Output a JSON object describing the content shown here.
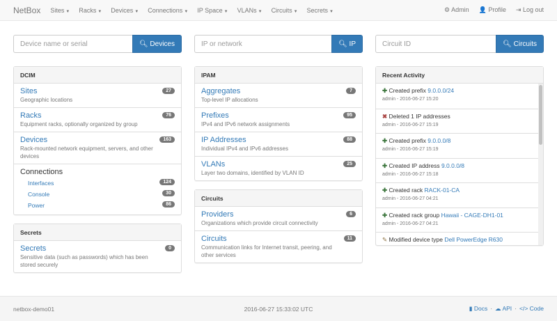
{
  "nav": {
    "brand": "NetBox",
    "menus": [
      "Sites",
      "Racks",
      "Devices",
      "Connections",
      "IP Space",
      "VLANs",
      "Circuits",
      "Secrets"
    ],
    "admin": "Admin",
    "profile": "Profile",
    "logout": "Log out"
  },
  "search": {
    "devices": {
      "placeholder": "Device name or serial",
      "button": "Devices"
    },
    "ip": {
      "placeholder": "IP or network",
      "button": "IP"
    },
    "circuits": {
      "placeholder": "Circuit ID",
      "button": "Circuits"
    }
  },
  "dcim": {
    "title": "DCIM",
    "items": [
      {
        "label": "Sites",
        "desc": "Geographic locations",
        "count": "27"
      },
      {
        "label": "Racks",
        "desc": "Equipment racks, optionally organized by group",
        "count": "76"
      },
      {
        "label": "Devices",
        "desc": "Rack-mounted network equipment, servers, and other devices",
        "count": "163"
      }
    ],
    "connections": {
      "label": "Connections",
      "items": [
        {
          "label": "Interfaces",
          "count": "124"
        },
        {
          "label": "Console",
          "count": "30"
        },
        {
          "label": "Power",
          "count": "86"
        }
      ]
    }
  },
  "secrets": {
    "title": "Secrets",
    "items": [
      {
        "label": "Secrets",
        "desc": "Sensitive data (such as passwords) which has been stored securely",
        "count": "0"
      }
    ]
  },
  "ipam": {
    "title": "IPAM",
    "items": [
      {
        "label": "Aggregates",
        "desc": "Top-level IP allocations",
        "count": "7"
      },
      {
        "label": "Prefixes",
        "desc": "IPv4 and IPv6 network assignments",
        "count": "95"
      },
      {
        "label": "IP Addresses",
        "desc": "Individual IPv4 and IPv6 addresses",
        "count": "88"
      },
      {
        "label": "VLANs",
        "desc": "Layer two domains, identified by VLAN ID",
        "count": "25"
      }
    ]
  },
  "circuits": {
    "title": "Circuits",
    "items": [
      {
        "label": "Providers",
        "desc": "Organizations which provide circuit connectivity",
        "count": "6"
      },
      {
        "label": "Circuits",
        "desc": "Communication links for Internet transit, peering, and other services",
        "count": "11"
      }
    ]
  },
  "activity": {
    "title": "Recent Activity",
    "items": [
      {
        "icon": "plus",
        "action": "Created prefix ",
        "link": "9.0.0.0/24",
        "meta": "admin - 2016-06-27 15:20"
      },
      {
        "icon": "x",
        "action": "Deleted 1 IP addresses",
        "link": "",
        "meta": "admin - 2016-06-27 15:19"
      },
      {
        "icon": "plus",
        "action": "Created prefix ",
        "link": "9.0.0.0/8",
        "meta": "admin - 2016-06-27 15:19"
      },
      {
        "icon": "plus",
        "action": "Created IP address ",
        "link": "9.0.0.0/8",
        "meta": "admin - 2016-06-27 15:18"
      },
      {
        "icon": "plus",
        "action": "Created rack ",
        "link": "RACK-01-CA",
        "meta": "admin - 2016-06-27 04:21"
      },
      {
        "icon": "plus",
        "action": "Created rack group ",
        "link": "Hawaii - CAGE-DH1-01",
        "meta": "admin - 2016-06-27 04:21"
      },
      {
        "icon": "pencil",
        "action": "Modified device type ",
        "link": "Dell PowerEdge R630",
        "meta": ""
      }
    ]
  },
  "footer": {
    "host": "netbox-demo01",
    "time": "2016-06-27 15:33:02 UTC",
    "docs": "Docs",
    "api": "API",
    "code": "Code"
  }
}
